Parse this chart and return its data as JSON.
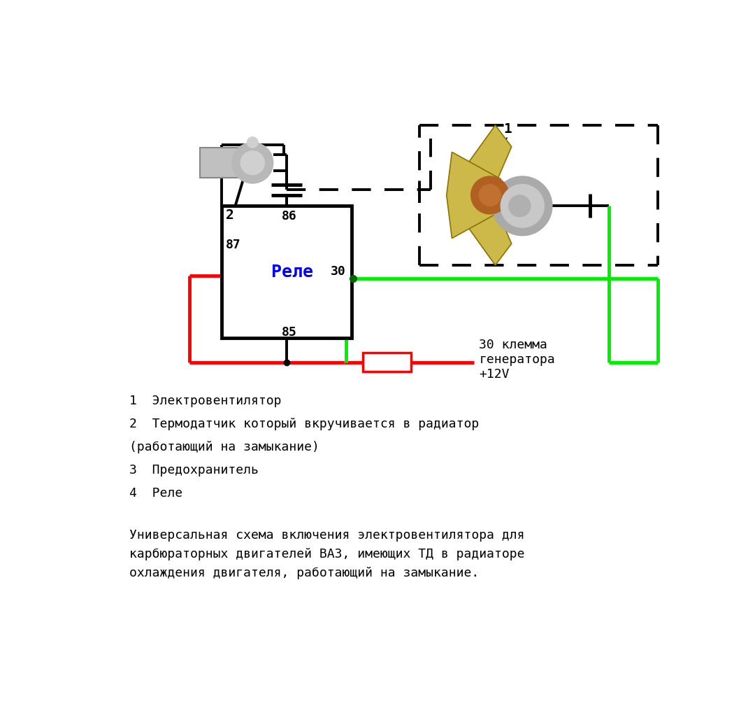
{
  "bg_color": "#ffffff",
  "relay_label": "Реле",
  "relay_label_color": "#0000ff",
  "red": "#ff0000",
  "green": "#00ee00",
  "black": "#000000",
  "blade_color": "#cdb84a",
  "blade_edge": "#8b7300",
  "motor_outer": "#aaaaaa",
  "motor_inner": "#c8c8c8",
  "hub_color": "#b06020",
  "sensor_body": "#c0c0c0",
  "sensor_thread": "#909090",
  "label1": "1  Электровентилятор",
  "label2": "2  Термодатчик который вкручивается в радиатор",
  "label2b": "(работающий на замыкание)",
  "label3": "3  Предохранитель",
  "label4": "4  Реле",
  "desc": "Универсальная схема включения электровентилятора для\nкарбюраторных двигателей ВАЗ, имеющих ТД в радиаторе\nохлаждения двигателя, работающий на замыкание.",
  "gen_label": "30 клемма\nгенератора\n+12V"
}
